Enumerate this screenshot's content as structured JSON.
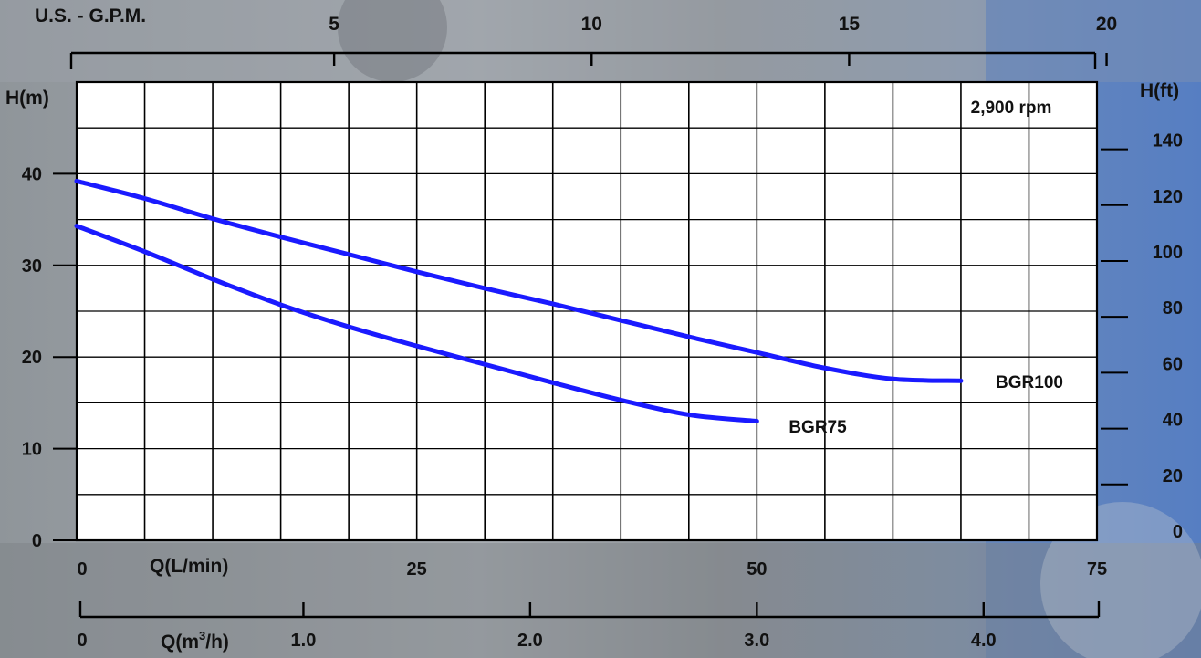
{
  "chart_data": {
    "type": "line",
    "annotation": "2,900 rpm",
    "y_left": {
      "label": "H(m)",
      "ticks": [
        "0",
        "10",
        "20",
        "30",
        "40"
      ],
      "range": [
        0,
        50
      ]
    },
    "y_right": {
      "label": "H(ft)",
      "ticks": [
        "0",
        "20",
        "40",
        "60",
        "80",
        "100",
        "120",
        "140"
      ]
    },
    "x_main": {
      "label": "Q(L/min)",
      "ticks": [
        "0",
        "25",
        "50",
        "75"
      ],
      "range": [
        0,
        75
      ]
    },
    "x_top": {
      "label": "U.S. - G.P.M.",
      "ticks": [
        "5",
        "10",
        "15",
        "20"
      ]
    },
    "x_bottom": {
      "label_prefix": "Q(m",
      "label_sup": "3",
      "label_suffix": "/h)",
      "ticks": [
        "0",
        "1.0",
        "2.0",
        "3.0",
        "4.0"
      ]
    },
    "grid": true,
    "series": [
      {
        "name": "BGR100",
        "color": "#1a1aff",
        "x": [
          0,
          5,
          10,
          15,
          20,
          25,
          30,
          35,
          40,
          45,
          50,
          55,
          60,
          65
        ],
        "y": [
          39.2,
          37.3,
          35.1,
          33.1,
          31.2,
          29.3,
          27.5,
          25.8,
          24.0,
          22.2,
          20.5,
          18.8,
          17.6,
          17.4
        ]
      },
      {
        "name": "BGR75",
        "color": "#1a1aff",
        "x": [
          0,
          5,
          10,
          15,
          20,
          25,
          30,
          35,
          40,
          45,
          50
        ],
        "y": [
          34.3,
          31.5,
          28.5,
          25.7,
          23.3,
          21.2,
          19.2,
          17.2,
          15.3,
          13.7,
          13.0
        ]
      }
    ]
  }
}
